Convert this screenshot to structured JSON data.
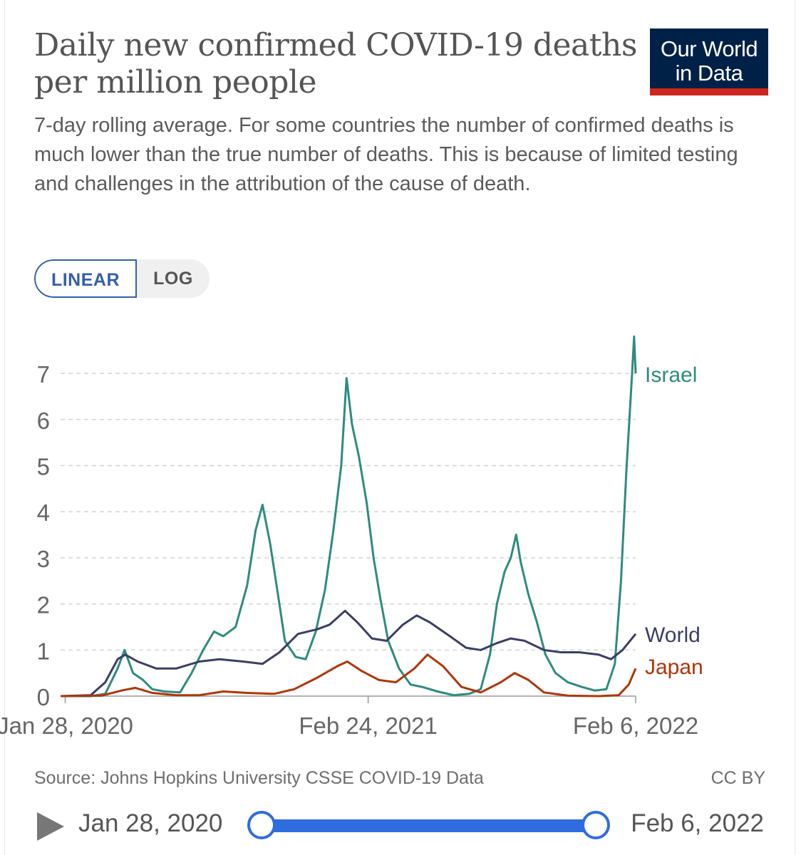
{
  "title": "Daily new confirmed COVID-19 deaths per million people",
  "subtitle": "7-day rolling average. For some countries the number of confirmed deaths is much lower than the true number of deaths. This is because of limited testing and challenges in the attribution of the cause of death.",
  "logo": {
    "line1": "Our World",
    "line2": "in Data",
    "bg": "#002147",
    "accent": "#ce261e"
  },
  "scale_toggle": {
    "linear": "LINEAR",
    "log": "LOG",
    "selected": "LINEAR"
  },
  "source": "Source: Johns Hopkins University CSSE COVID-19 Data",
  "license": "CC BY",
  "timeline": {
    "start": "Jan 28, 2020",
    "end": "Feb 6, 2022",
    "play_icon": "play-icon"
  },
  "chart_data": {
    "type": "line",
    "title": "Daily new confirmed COVID-19 deaths per million people",
    "x_tick_labels": [
      "Jan 28, 2020",
      "Feb 24, 2021",
      "Feb 6, 2022"
    ],
    "xlim": [
      "2020-01-28",
      "2022-02-06"
    ],
    "ylim": [
      0,
      7
    ],
    "y_ticks": [
      0,
      1,
      2,
      3,
      4,
      5,
      6,
      7
    ],
    "grid": "horizontal dashed",
    "legend": "line-end labels",
    "series": [
      {
        "name": "Israel",
        "color": "#2e8b7f",
        "points": [
          [
            "2020-01-22",
            0
          ],
          [
            "2020-03-01",
            0
          ],
          [
            "2020-03-20",
            0.05
          ],
          [
            "2020-04-05",
            0.6
          ],
          [
            "2020-04-14",
            1.0
          ],
          [
            "2020-04-25",
            0.5
          ],
          [
            "2020-05-08",
            0.35
          ],
          [
            "2020-05-20",
            0.15
          ],
          [
            "2020-06-05",
            0.1
          ],
          [
            "2020-06-25",
            0.08
          ],
          [
            "2020-07-10",
            0.5
          ],
          [
            "2020-07-25",
            1.0
          ],
          [
            "2020-08-08",
            1.4
          ],
          [
            "2020-08-20",
            1.3
          ],
          [
            "2020-09-05",
            1.5
          ],
          [
            "2020-09-20",
            2.4
          ],
          [
            "2020-10-01",
            3.6
          ],
          [
            "2020-10-10",
            4.15
          ],
          [
            "2020-10-20",
            3.3
          ],
          [
            "2020-10-30",
            2.2
          ],
          [
            "2020-11-08",
            1.2
          ],
          [
            "2020-11-22",
            0.85
          ],
          [
            "2020-12-05",
            0.8
          ],
          [
            "2020-12-18",
            1.4
          ],
          [
            "2020-12-30",
            2.3
          ],
          [
            "2021-01-10",
            3.6
          ],
          [
            "2021-01-20",
            5.0
          ],
          [
            "2021-01-27",
            6.9
          ],
          [
            "2021-02-03",
            5.9
          ],
          [
            "2021-02-12",
            5.2
          ],
          [
            "2021-02-22",
            4.2
          ],
          [
            "2021-03-03",
            3.0
          ],
          [
            "2021-03-12",
            2.1
          ],
          [
            "2021-03-22",
            1.2
          ],
          [
            "2021-04-05",
            0.6
          ],
          [
            "2021-04-20",
            0.25
          ],
          [
            "2021-05-05",
            0.2
          ],
          [
            "2021-05-25",
            0.1
          ],
          [
            "2021-06-15",
            0.02
          ],
          [
            "2021-07-05",
            0.05
          ],
          [
            "2021-07-20",
            0.15
          ],
          [
            "2021-08-01",
            0.9
          ],
          [
            "2021-08-10",
            2.0
          ],
          [
            "2021-08-20",
            2.7
          ],
          [
            "2021-08-28",
            3.0
          ],
          [
            "2021-09-04",
            3.5
          ],
          [
            "2021-09-10",
            2.9
          ],
          [
            "2021-09-20",
            2.2
          ],
          [
            "2021-10-01",
            1.6
          ],
          [
            "2021-10-12",
            0.9
          ],
          [
            "2021-10-25",
            0.5
          ],
          [
            "2021-11-10",
            0.3
          ],
          [
            "2021-11-28",
            0.2
          ],
          [
            "2021-12-15",
            0.12
          ],
          [
            "2021-12-30",
            0.15
          ],
          [
            "2022-01-10",
            0.7
          ],
          [
            "2022-01-18",
            2.5
          ],
          [
            "2022-01-25",
            4.9
          ],
          [
            "2022-02-01",
            6.9
          ],
          [
            "2022-02-04",
            7.8
          ],
          [
            "2022-02-06",
            7.0
          ]
        ]
      },
      {
        "name": "World",
        "color": "#3b3e66",
        "points": [
          [
            "2020-01-22",
            0
          ],
          [
            "2020-03-01",
            0.02
          ],
          [
            "2020-03-20",
            0.3
          ],
          [
            "2020-04-05",
            0.8
          ],
          [
            "2020-04-15",
            0.9
          ],
          [
            "2020-05-01",
            0.75
          ],
          [
            "2020-05-25",
            0.6
          ],
          [
            "2020-06-20",
            0.6
          ],
          [
            "2020-07-20",
            0.75
          ],
          [
            "2020-08-15",
            0.8
          ],
          [
            "2020-09-15",
            0.75
          ],
          [
            "2020-10-10",
            0.7
          ],
          [
            "2020-11-01",
            0.95
          ],
          [
            "2020-11-25",
            1.35
          ],
          [
            "2020-12-20",
            1.45
          ],
          [
            "2021-01-05",
            1.55
          ],
          [
            "2021-01-25",
            1.85
          ],
          [
            "2021-02-10",
            1.6
          ],
          [
            "2021-03-01",
            1.25
          ],
          [
            "2021-03-20",
            1.2
          ],
          [
            "2021-04-10",
            1.55
          ],
          [
            "2021-04-28",
            1.75
          ],
          [
            "2021-05-15",
            1.6
          ],
          [
            "2021-06-10",
            1.3
          ],
          [
            "2021-07-01",
            1.05
          ],
          [
            "2021-07-20",
            1.0
          ],
          [
            "2021-08-10",
            1.15
          ],
          [
            "2021-08-28",
            1.25
          ],
          [
            "2021-09-15",
            1.2
          ],
          [
            "2021-10-10",
            1.0
          ],
          [
            "2021-11-01",
            0.95
          ],
          [
            "2021-11-25",
            0.95
          ],
          [
            "2021-12-20",
            0.9
          ],
          [
            "2022-01-05",
            0.8
          ],
          [
            "2022-01-20",
            1.0
          ],
          [
            "2022-02-06",
            1.35
          ]
        ]
      },
      {
        "name": "Japan",
        "color": "#b13507",
        "points": [
          [
            "2020-01-22",
            0
          ],
          [
            "2020-03-15",
            0.01
          ],
          [
            "2020-04-10",
            0.12
          ],
          [
            "2020-04-28",
            0.18
          ],
          [
            "2020-05-20",
            0.07
          ],
          [
            "2020-06-20",
            0.02
          ],
          [
            "2020-07-20",
            0.02
          ],
          [
            "2020-08-20",
            0.1
          ],
          [
            "2020-09-20",
            0.07
          ],
          [
            "2020-10-25",
            0.05
          ],
          [
            "2020-11-20",
            0.15
          ],
          [
            "2020-12-20",
            0.4
          ],
          [
            "2021-01-15",
            0.65
          ],
          [
            "2021-01-28",
            0.75
          ],
          [
            "2021-02-15",
            0.55
          ],
          [
            "2021-03-10",
            0.35
          ],
          [
            "2021-04-01",
            0.3
          ],
          [
            "2021-04-25",
            0.6
          ],
          [
            "2021-05-12",
            0.9
          ],
          [
            "2021-06-01",
            0.65
          ],
          [
            "2021-06-25",
            0.2
          ],
          [
            "2021-07-20",
            0.08
          ],
          [
            "2021-08-15",
            0.3
          ],
          [
            "2021-09-02",
            0.5
          ],
          [
            "2021-09-20",
            0.35
          ],
          [
            "2021-10-10",
            0.08
          ],
          [
            "2021-11-10",
            0.01
          ],
          [
            "2021-12-20",
            0.0
          ],
          [
            "2022-01-15",
            0.02
          ],
          [
            "2022-01-28",
            0.25
          ],
          [
            "2022-02-06",
            0.6
          ]
        ]
      }
    ]
  }
}
